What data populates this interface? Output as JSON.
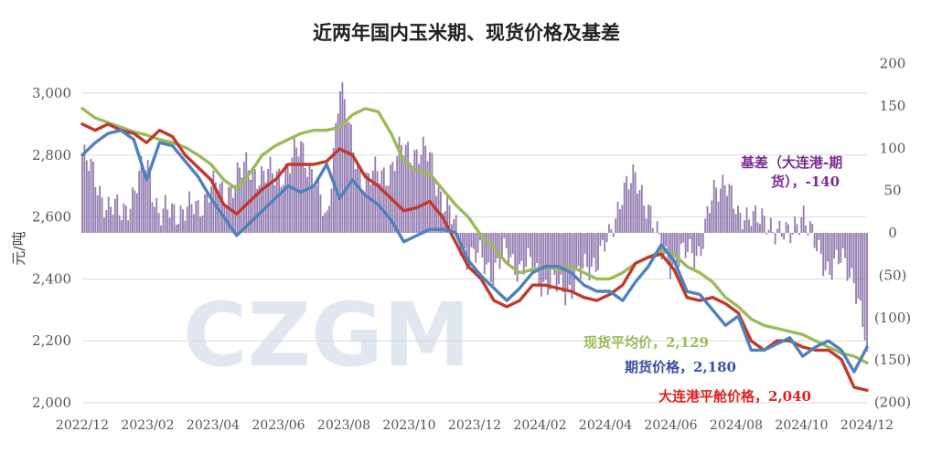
{
  "chart_data": {
    "type": "line",
    "title": "近两年国内玉米期、现货价格及基差",
    "ylabel": "元/吨",
    "y_left": {
      "ticks": [
        "2,000",
        "2,200",
        "2,400",
        "2,600",
        "2,800",
        "3,000"
      ],
      "lim": [
        2000,
        3100
      ]
    },
    "y_right": {
      "ticks": [
        "200",
        "150",
        "100",
        "50",
        "0",
        "(50)",
        "(100)",
        "(150)",
        "(200)"
      ],
      "lim": [
        -200,
        200
      ]
    },
    "x_ticks": [
      "2022/12",
      "2023/02",
      "2023/04",
      "2023/06",
      "2023/08",
      "2023/10",
      "2023/12",
      "2024/02",
      "2024/04",
      "2024/06",
      "2024/08",
      "2024/10",
      "2024/12"
    ],
    "x_range": [
      "2022/12",
      "2024/12"
    ],
    "watermark": "CZGM",
    "colors": {
      "spot": "#9bbb59",
      "futures": "#4f81bd",
      "dalian": "#c0392b",
      "basis": "#8064a2",
      "grid": "#d9d9d9"
    },
    "series": [
      {
        "name": "现货平均价",
        "color": "#9bbb59",
        "label": "现货平均价，2,129",
        "values": [
          2950,
          2920,
          2905,
          2890,
          2875,
          2865,
          2850,
          2840,
          2825,
          2800,
          2770,
          2720,
          2690,
          2740,
          2800,
          2830,
          2850,
          2870,
          2880,
          2880,
          2890,
          2930,
          2950,
          2940,
          2870,
          2780,
          2750,
          2740,
          2690,
          2640,
          2600,
          2540,
          2500,
          2450,
          2420,
          2430,
          2440,
          2430,
          2440,
          2420,
          2400,
          2400,
          2420,
          2450,
          2470,
          2490,
          2480,
          2440,
          2420,
          2390,
          2340,
          2310,
          2270,
          2250,
          2240,
          2230,
          2220,
          2200,
          2180,
          2160,
          2150,
          2129
        ]
      },
      {
        "name": "期货价格",
        "color": "#4f81bd",
        "label": "期货价格，2,180",
        "values": [
          2800,
          2840,
          2870,
          2880,
          2850,
          2720,
          2840,
          2830,
          2780,
          2730,
          2660,
          2600,
          2540,
          2580,
          2620,
          2660,
          2700,
          2680,
          2700,
          2770,
          2660,
          2720,
          2670,
          2640,
          2590,
          2520,
          2540,
          2560,
          2560,
          2550,
          2460,
          2410,
          2370,
          2330,
          2370,
          2420,
          2440,
          2440,
          2420,
          2380,
          2360,
          2360,
          2330,
          2390,
          2440,
          2510,
          2460,
          2360,
          2350,
          2300,
          2250,
          2280,
          2170,
          2170,
          2190,
          2210,
          2150,
          2180,
          2200,
          2170,
          2100,
          2180
        ]
      },
      {
        "name": "大连港平舱价格",
        "color": "#c0392b",
        "label": "大连港平舱价格，2,040",
        "values": [
          2900,
          2880,
          2900,
          2880,
          2870,
          2840,
          2880,
          2860,
          2800,
          2760,
          2720,
          2640,
          2610,
          2650,
          2690,
          2720,
          2770,
          2770,
          2770,
          2780,
          2820,
          2800,
          2730,
          2700,
          2660,
          2620,
          2630,
          2650,
          2600,
          2520,
          2440,
          2400,
          2330,
          2310,
          2330,
          2380,
          2380,
          2370,
          2360,
          2340,
          2330,
          2350,
          2380,
          2450,
          2470,
          2480,
          2430,
          2340,
          2330,
          2340,
          2320,
          2290,
          2200,
          2170,
          2200,
          2200,
          2180,
          2170,
          2170,
          2140,
          2050,
          2040
        ]
      },
      {
        "name": "基差（大连港-期货）",
        "color": "#8064a2",
        "axis": "right",
        "label_line1": "基差（大连港-期",
        "label_line2": "货），-140",
        "values": [
          90,
          65,
          28,
          25,
          45,
          85,
          20,
          25,
          30,
          25,
          60,
          40,
          70,
          75,
          70,
          65,
          80,
          100,
          70,
          5,
          180,
          100,
          60,
          70,
          75,
          100,
          95,
          90,
          40,
          5,
          -30,
          -30,
          -45,
          -25,
          -40,
          -40,
          -60,
          -65,
          -65,
          -45,
          -30,
          -10,
          55,
          60,
          35,
          -25,
          -35,
          -25,
          -20,
          40,
          70,
          10,
          30,
          5,
          10,
          -10,
          30,
          -20,
          -40,
          -35,
          -50,
          -140
        ]
      }
    ]
  }
}
